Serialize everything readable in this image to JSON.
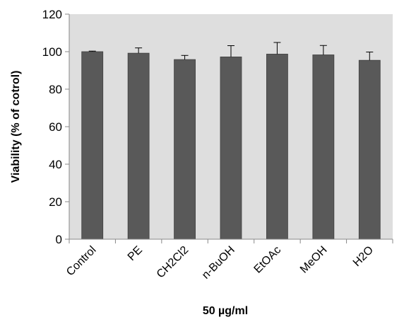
{
  "chart_data": {
    "type": "bar",
    "title": "",
    "xlabel": "50 µg/ml",
    "ylabel": "Viability (% of cotrol)",
    "ylim": [
      0,
      120
    ],
    "yticks": [
      0,
      20,
      40,
      60,
      80,
      100,
      120
    ],
    "categories": [
      "Control",
      "PE",
      "CH2Cl2",
      "n-BuOH",
      "EtOAc",
      "MeOH",
      "H2O"
    ],
    "series": [
      {
        "values": [
          100,
          99.2,
          95.8,
          97.2,
          98.7,
          98.3,
          95.4
        ],
        "error_plus": [
          0.3,
          2.8,
          2.2,
          6.0,
          6.2,
          5.0,
          4.4
        ]
      }
    ],
    "grid": false,
    "legend": "none",
    "colors": {
      "plot_background": "#dedede",
      "bar_fill": "#595959",
      "bar_stroke": "#404040",
      "axis": "#888888",
      "error_bar": "#000000"
    }
  }
}
